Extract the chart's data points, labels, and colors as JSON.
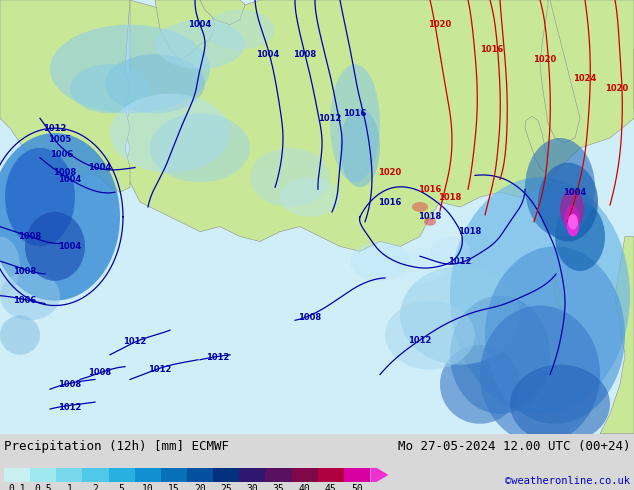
{
  "title_left": "Precipitation (12h) [mm] ECMWF",
  "title_right": "Mo 27-05-2024 12.00 UTC (00+24)",
  "credit": "©weatheronline.co.uk",
  "colorbar_tick_labels": [
    "0.1",
    "0.5",
    "1",
    "2",
    "5",
    "10",
    "15",
    "20",
    "25",
    "30",
    "35",
    "40",
    "45",
    "50"
  ],
  "colorbar_colors": [
    "#c8f0f0",
    "#a0e8f0",
    "#78d8ec",
    "#50c8e8",
    "#28b0e0",
    "#1090d0",
    "#0870b8",
    "#0650a0",
    "#043080",
    "#301870",
    "#581060",
    "#800848",
    "#b00040",
    "#d800a0"
  ],
  "colorbar_arrow_color": "#f030d0",
  "land_color": "#c8e898",
  "sea_color": "#d0eef8",
  "bg_color": "#d8d8d8",
  "text_bg_color": "#ffffff",
  "title_fontsize": 9,
  "colorbar_label_fontsize": 7,
  "credit_color": "#0000cc",
  "blue_isobar_color": "#0000aa",
  "red_isobar_color": "#cc0000",
  "isobar_linewidth": 0.9,
  "isobar_label_fontsize": 6
}
